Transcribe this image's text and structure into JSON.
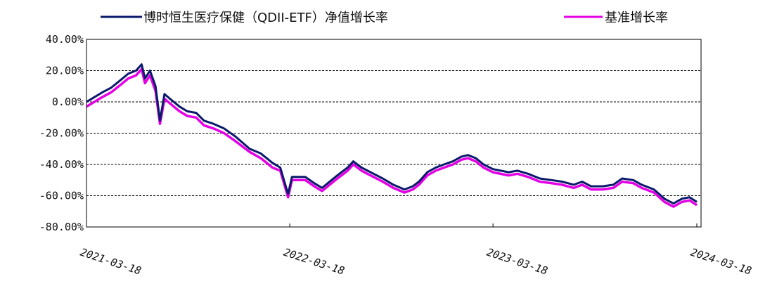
{
  "chart_data": {
    "type": "line",
    "title": "",
    "xlabel": "",
    "ylabel": "",
    "ylim": [
      -80,
      40
    ],
    "y_ticks": [
      40,
      20,
      0,
      -20,
      -40,
      -60,
      -80
    ],
    "y_tick_labels": [
      "40.00%",
      "20.00%",
      "0.00%",
      "-20.00%",
      "-40.00%",
      "-60.00%",
      "-80.00%"
    ],
    "x_range": [
      "2021-03-18",
      "2024-03-18"
    ],
    "x_ticks": [
      "2021-03-18",
      "2022-03-18",
      "2023-03-18",
      "2024-03-18"
    ],
    "grid": "horizontal-dashed",
    "legend_position": "top",
    "series": [
      {
        "name": "博时恒生医疗保健（QDII-ETF）净值增长率",
        "color": "#0a1a6b",
        "points": [
          [
            "2021-03-18",
            0
          ],
          [
            "2021-04-01",
            3
          ],
          [
            "2021-04-15",
            6
          ],
          [
            "2021-05-01",
            9
          ],
          [
            "2021-05-15",
            13
          ],
          [
            "2021-06-01",
            18
          ],
          [
            "2021-06-15",
            20
          ],
          [
            "2021-06-25",
            24
          ],
          [
            "2021-07-01",
            15
          ],
          [
            "2021-07-10",
            20
          ],
          [
            "2021-07-20",
            10
          ],
          [
            "2021-07-28",
            -12
          ],
          [
            "2021-08-05",
            5
          ],
          [
            "2021-08-15",
            2
          ],
          [
            "2021-09-01",
            -3
          ],
          [
            "2021-09-15",
            -6
          ],
          [
            "2021-10-01",
            -7
          ],
          [
            "2021-10-15",
            -12
          ],
          [
            "2021-11-01",
            -14
          ],
          [
            "2021-11-20",
            -17
          ],
          [
            "2021-12-10",
            -22
          ],
          [
            "2022-01-05",
            -30
          ],
          [
            "2022-01-25",
            -33
          ],
          [
            "2022-02-15",
            -39
          ],
          [
            "2022-03-01",
            -42
          ],
          [
            "2022-03-15",
            -59
          ],
          [
            "2022-03-22",
            -48
          ],
          [
            "2022-04-15",
            -48
          ],
          [
            "2022-05-01",
            -52
          ],
          [
            "2022-05-15",
            -55
          ],
          [
            "2022-06-01",
            -50
          ],
          [
            "2022-06-15",
            -46
          ],
          [
            "2022-06-30",
            -42
          ],
          [
            "2022-07-10",
            -38
          ],
          [
            "2022-07-25",
            -42
          ],
          [
            "2022-08-10",
            -45
          ],
          [
            "2022-09-01",
            -49
          ],
          [
            "2022-09-20",
            -53
          ],
          [
            "2022-10-10",
            -56
          ],
          [
            "2022-10-25",
            -54
          ],
          [
            "2022-11-05",
            -51
          ],
          [
            "2022-11-20",
            -45
          ],
          [
            "2022-12-05",
            -42
          ],
          [
            "2022-12-20",
            -40
          ],
          [
            "2023-01-05",
            -38
          ],
          [
            "2023-01-20",
            -35
          ],
          [
            "2023-02-01",
            -34
          ],
          [
            "2023-02-15",
            -36
          ],
          [
            "2023-03-01",
            -40
          ],
          [
            "2023-03-18",
            -43
          ],
          [
            "2023-04-15",
            -45
          ],
          [
            "2023-05-01",
            -44
          ],
          [
            "2023-05-20",
            -46
          ],
          [
            "2023-06-10",
            -49
          ],
          [
            "2023-07-01",
            -50
          ],
          [
            "2023-07-20",
            -51
          ],
          [
            "2023-08-10",
            -53
          ],
          [
            "2023-08-25",
            -51
          ],
          [
            "2023-09-10",
            -54
          ],
          [
            "2023-10-01",
            -54
          ],
          [
            "2023-10-20",
            -53
          ],
          [
            "2023-11-05",
            -49
          ],
          [
            "2023-11-25",
            -50
          ],
          [
            "2023-12-10",
            -53
          ],
          [
            "2024-01-01",
            -56
          ],
          [
            "2024-01-20",
            -62
          ],
          [
            "2024-02-05",
            -65
          ],
          [
            "2024-02-20",
            -62
          ],
          [
            "2024-03-05",
            -61
          ],
          [
            "2024-03-18",
            -64
          ]
        ]
      },
      {
        "name": "基准增长率",
        "color": "#e400e4",
        "points": [
          [
            "2021-03-18",
            -3
          ],
          [
            "2021-04-01",
            0
          ],
          [
            "2021-04-15",
            3
          ],
          [
            "2021-05-01",
            6
          ],
          [
            "2021-05-15",
            10
          ],
          [
            "2021-06-01",
            15
          ],
          [
            "2021-06-15",
            17
          ],
          [
            "2021-06-25",
            21
          ],
          [
            "2021-07-01",
            12
          ],
          [
            "2021-07-10",
            17
          ],
          [
            "2021-07-20",
            7
          ],
          [
            "2021-07-28",
            -14
          ],
          [
            "2021-08-05",
            2
          ],
          [
            "2021-08-15",
            -1
          ],
          [
            "2021-09-01",
            -6
          ],
          [
            "2021-09-15",
            -9
          ],
          [
            "2021-10-01",
            -10
          ],
          [
            "2021-10-15",
            -15
          ],
          [
            "2021-11-01",
            -17
          ],
          [
            "2021-11-20",
            -20
          ],
          [
            "2021-12-10",
            -25
          ],
          [
            "2022-01-05",
            -32
          ],
          [
            "2022-01-25",
            -36
          ],
          [
            "2022-02-15",
            -42
          ],
          [
            "2022-03-01",
            -44
          ],
          [
            "2022-03-15",
            -61
          ],
          [
            "2022-03-22",
            -50
          ],
          [
            "2022-04-15",
            -50
          ],
          [
            "2022-05-01",
            -54
          ],
          [
            "2022-05-15",
            -57
          ],
          [
            "2022-06-01",
            -52
          ],
          [
            "2022-06-15",
            -48
          ],
          [
            "2022-06-30",
            -44
          ],
          [
            "2022-07-10",
            -40
          ],
          [
            "2022-07-25",
            -44
          ],
          [
            "2022-08-10",
            -47
          ],
          [
            "2022-09-01",
            -51
          ],
          [
            "2022-09-20",
            -55
          ],
          [
            "2022-10-10",
            -58
          ],
          [
            "2022-10-25",
            -56
          ],
          [
            "2022-11-05",
            -53
          ],
          [
            "2022-11-20",
            -47
          ],
          [
            "2022-12-05",
            -44
          ],
          [
            "2022-12-20",
            -42
          ],
          [
            "2023-01-05",
            -40
          ],
          [
            "2023-01-20",
            -37
          ],
          [
            "2023-02-01",
            -36
          ],
          [
            "2023-02-15",
            -38
          ],
          [
            "2023-03-01",
            -42
          ],
          [
            "2023-03-18",
            -45
          ],
          [
            "2023-04-15",
            -47
          ],
          [
            "2023-05-01",
            -46
          ],
          [
            "2023-05-20",
            -48
          ],
          [
            "2023-06-10",
            -51
          ],
          [
            "2023-07-01",
            -52
          ],
          [
            "2023-07-20",
            -53
          ],
          [
            "2023-08-10",
            -55
          ],
          [
            "2023-08-25",
            -53
          ],
          [
            "2023-09-10",
            -56
          ],
          [
            "2023-10-01",
            -56
          ],
          [
            "2023-10-20",
            -55
          ],
          [
            "2023-11-05",
            -51
          ],
          [
            "2023-11-25",
            -52
          ],
          [
            "2023-12-10",
            -55
          ],
          [
            "2024-01-01",
            -58
          ],
          [
            "2024-01-20",
            -64
          ],
          [
            "2024-02-05",
            -67
          ],
          [
            "2024-02-20",
            -64
          ],
          [
            "2024-03-05",
            -63
          ],
          [
            "2024-03-18",
            -66
          ]
        ]
      }
    ]
  }
}
